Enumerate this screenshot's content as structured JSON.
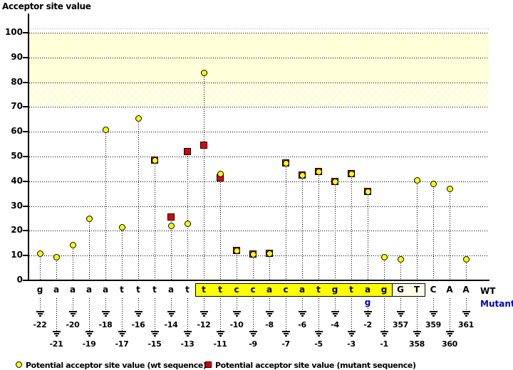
{
  "title": "Acceptor site value",
  "axis_labels": {
    "wt": "WT",
    "mutant": "Mutant",
    "mutant_base": "g"
  },
  "legend": {
    "wt": "Potential acceptor site value (wt sequence)",
    "mutant": "Potential acceptor site value (mutant sequence)"
  },
  "colors": {
    "wt_marker": "#ffff00",
    "mutant_marker": "#dd0000",
    "band_solid": "#ffffd9",
    "hatch_line": "#ffffc9",
    "highlight_box": "#ffff00",
    "exon_box": "#ffffe8",
    "mutant_text": "#0000cc"
  },
  "chart_data": {
    "type": "scatter",
    "title": "Acceptor site value",
    "ylabel": "Acceptor site value",
    "ylim": [
      0,
      105
    ],
    "yticks": [
      0,
      10,
      20,
      30,
      40,
      50,
      60,
      70,
      80,
      90,
      100
    ],
    "grid": "dotted horizontal lines at each tick",
    "legend_position": "bottom",
    "bands": [
      {
        "from": 80,
        "to": 100,
        "style": "solid-pale-yellow"
      },
      {
        "from": 70,
        "to": 80,
        "style": "hatched-pale-yellow"
      }
    ],
    "series": [
      {
        "name": "Potential acceptor site value (wt sequence)",
        "marker": "circle",
        "color": "#ffff00"
      },
      {
        "name": "Potential acceptor site value (mutant sequence)",
        "marker": "square",
        "color": "#dd0000"
      }
    ],
    "highlighted_acceptor_region": {
      "from": "-12",
      "to": "-1",
      "sequence": "ttccacatgtag"
    },
    "exon_boxed_positions": [
      "357",
      "358"
    ],
    "mutation": {
      "position": "-2",
      "wt_base": "a",
      "mutant_base": "g"
    },
    "columns": [
      {
        "pos": "-22",
        "base": "g",
        "wt": 11,
        "mut": null
      },
      {
        "pos": "-21",
        "base": "a",
        "wt": 9.5,
        "mut": null
      },
      {
        "pos": "-20",
        "base": "a",
        "wt": 14.5,
        "mut": null
      },
      {
        "pos": "-19",
        "base": "a",
        "wt": 25,
        "mut": null
      },
      {
        "pos": "-18",
        "base": "a",
        "wt": 61,
        "mut": null
      },
      {
        "pos": "-17",
        "base": "t",
        "wt": 21.5,
        "mut": null
      },
      {
        "pos": "-16",
        "base": "t",
        "wt": 65.5,
        "mut": null
      },
      {
        "pos": "-15",
        "base": "t",
        "wt": 48.5,
        "mut": 48.5
      },
      {
        "pos": "-14",
        "base": "a",
        "wt": 22,
        "mut": 25.5
      },
      {
        "pos": "-13",
        "base": "t",
        "wt": 23,
        "mut": 52
      },
      {
        "pos": "-12",
        "base": "t",
        "wt": 84,
        "mut": 54.5
      },
      {
        "pos": "-11",
        "base": "t",
        "wt": 43,
        "mut": 41.5
      },
      {
        "pos": "-10",
        "base": "c",
        "wt": 12,
        "mut": 12
      },
      {
        "pos": "-9",
        "base": "c",
        "wt": 10.5,
        "mut": 10.5
      },
      {
        "pos": "-8",
        "base": "a",
        "wt": 11,
        "mut": 11
      },
      {
        "pos": "-7",
        "base": "c",
        "wt": 47.5,
        "mut": 47.5
      },
      {
        "pos": "-6",
        "base": "a",
        "wt": 42.5,
        "mut": 42.5
      },
      {
        "pos": "-5",
        "base": "t",
        "wt": 44,
        "mut": 44
      },
      {
        "pos": "-4",
        "base": "g",
        "wt": 40,
        "mut": 40
      },
      {
        "pos": "-3",
        "base": "t",
        "wt": 43,
        "mut": 43
      },
      {
        "pos": "-2",
        "base": "a",
        "wt": 36,
        "mut": 36
      },
      {
        "pos": "-1",
        "base": "g",
        "wt": 9.5,
        "mut": null
      },
      {
        "pos": "357",
        "base": "G",
        "wt": 8.5,
        "mut": null
      },
      {
        "pos": "358",
        "base": "T",
        "wt": 40.5,
        "mut": null
      },
      {
        "pos": "359",
        "base": "C",
        "wt": 39,
        "mut": null
      },
      {
        "pos": "360",
        "base": "A",
        "wt": 37,
        "mut": null
      },
      {
        "pos": "361",
        "base": "A",
        "wt": 8.5,
        "mut": null
      }
    ]
  }
}
